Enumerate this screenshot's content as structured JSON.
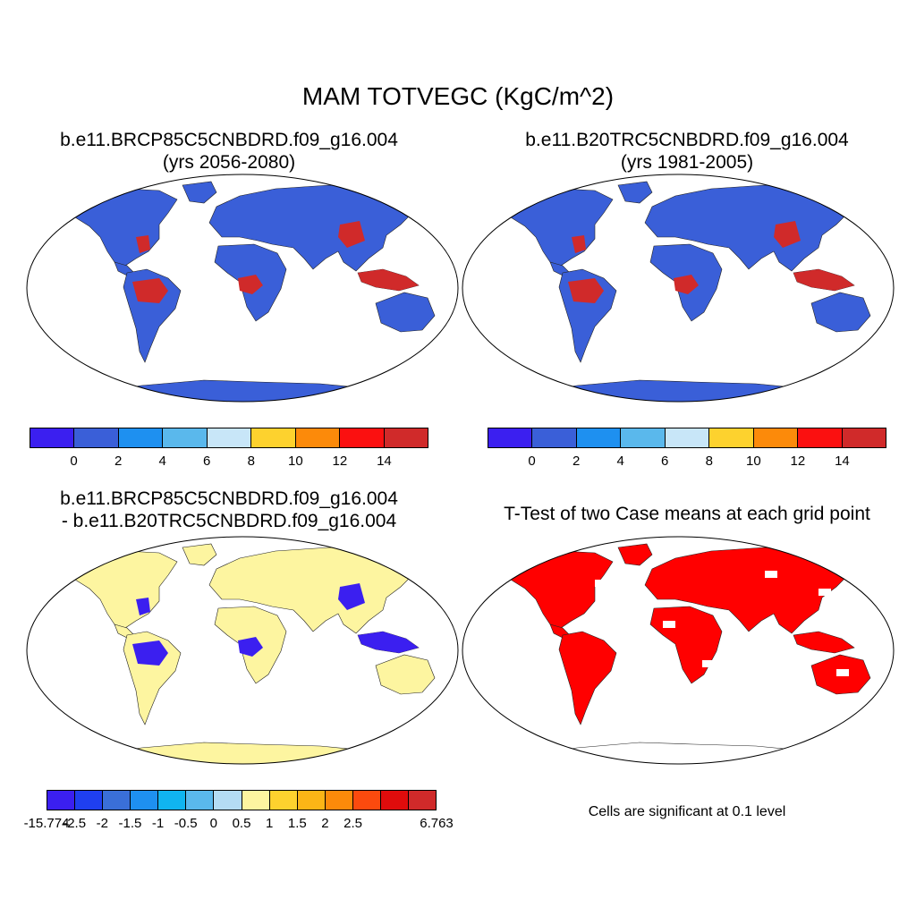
{
  "title": "MAM TOTVEGC (KgC/m^2)",
  "panels": [
    {
      "id": "p1",
      "title_line1": "b.e11.BRCP85C5CNBDRD.f09_g16.004",
      "title_line2": "(yrs 2056-2080)"
    },
    {
      "id": "p2",
      "title_line1": "b.e11.B20TRC5CNBDRD.f09_g16.004",
      "title_line2": "(yrs 1981-2005)"
    },
    {
      "id": "p3",
      "title_line1": "b.e11.BRCP85C5CNBDRD.f09_g16.004",
      "title_line2": "- b.e11.B20TRC5CNBDRD.f09_g16.004"
    },
    {
      "id": "p4",
      "title_line1": "T-Test of two Case means at each grid point",
      "title_line2": ""
    }
  ],
  "significance_note": "Cells are significant at 0.1 level",
  "colorbars": {
    "absolute": {
      "colors": [
        "#3b1ff0",
        "#3a5fd8",
        "#1e90f0",
        "#5ab8ec",
        "#c8e6f8",
        "#fdd22e",
        "#fc8a0a",
        "#fb1010",
        "#d02a2a"
      ],
      "labels": [
        "0",
        "2",
        "4",
        "6",
        "8",
        "10",
        "12",
        "14"
      ]
    },
    "difference": {
      "colors": [
        "#3b1ff0",
        "#1f3ff0",
        "#3a6fd8",
        "#1e90f0",
        "#10b4f0",
        "#5ab8ec",
        "#b4dcf4",
        "#fdf5a0",
        "#fdd22e",
        "#fbb516",
        "#fc8a0a",
        "#fb4a0e",
        "#e00c0c",
        "#d02a2a"
      ],
      "labels": [
        "-15.774",
        "-2.5",
        "-2",
        "-1.5",
        "-1",
        "-0.5",
        "0",
        "0.5",
        "1",
        "1.5",
        "2",
        "2.5",
        "6.763"
      ]
    }
  },
  "map_colors": {
    "p1": {
      "land": "#3a5fd8",
      "hotspot": "#d02a2a"
    },
    "p2": {
      "land": "#3a5fd8",
      "hotspot": "#d02a2a"
    },
    "p3": {
      "land": "#fdf5a0",
      "hotspot": "#3b1ff0"
    },
    "p4": {
      "land": "#ff0000",
      "hotspot": "#ff0000"
    }
  }
}
